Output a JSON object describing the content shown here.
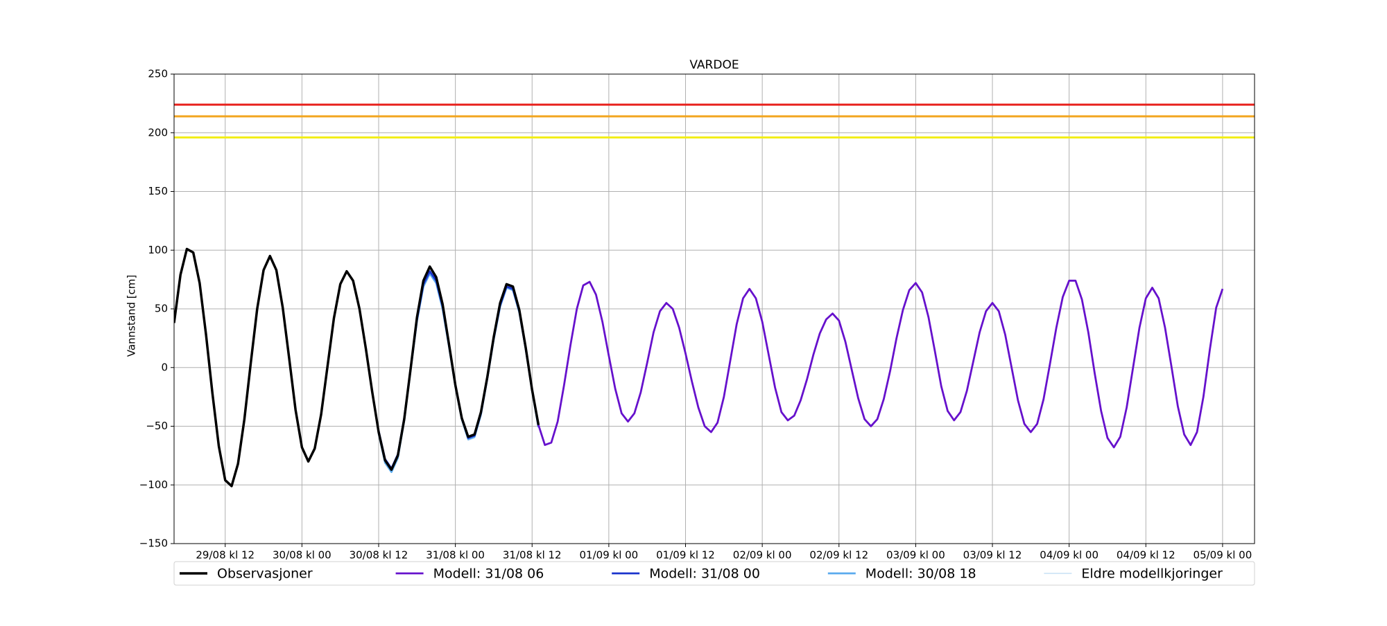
{
  "chart_data": {
    "type": "line",
    "title": "VARDOE",
    "y_label": "Vannstand [cm]",
    "xlim": [
      "29/08 kl 04",
      "05/09 kl 05"
    ],
    "xticks": [
      "29/08 kl 12",
      "30/08 kl 00",
      "30/08 kl 12",
      "31/08 kl 00",
      "31/08 kl 12",
      "01/09 kl 00",
      "01/09 kl 12",
      "02/09 kl 00",
      "02/09 kl 12",
      "03/09 kl 00",
      "03/09 kl 12",
      "04/09 kl 00",
      "04/09 kl 12",
      "05/09 kl 00"
    ],
    "ylim": [
      -150,
      250
    ],
    "yticks": [
      {
        "value": -150,
        "label": "−150"
      },
      {
        "value": -100,
        "label": "−100"
      },
      {
        "value": -50,
        "label": "−50"
      },
      0,
      50,
      100,
      150,
      200,
      250
    ],
    "grid": true,
    "legend": "below",
    "thresholds": [
      {
        "value": 224,
        "color": "#e8211d"
      },
      {
        "value": 214,
        "color": "#f2a51f"
      },
      {
        "value": 196,
        "color": "#f2ee1a"
      }
    ],
    "series": [
      {
        "name": "Observasjoner",
        "color": "#000000",
        "x": [
          "29/08 kl 04",
          "29/08 kl 05",
          "29/08 kl 06",
          "29/08 kl 07",
          "29/08 kl 08",
          "29/08 kl 09",
          "29/08 kl 10",
          "29/08 kl 11",
          "29/08 kl 12",
          "29/08 kl 13",
          "29/08 kl 14",
          "29/08 kl 15",
          "29/08 kl 16",
          "29/08 kl 17",
          "29/08 kl 18",
          "29/08 kl 19",
          "29/08 kl 20",
          "29/08 kl 21",
          "29/08 kl 22",
          "29/08 kl 23",
          "30/08 kl 00",
          "30/08 kl 01",
          "30/08 kl 02",
          "30/08 kl 03",
          "30/08 kl 04",
          "30/08 kl 05",
          "30/08 kl 06",
          "30/08 kl 07",
          "30/08 kl 08",
          "30/08 kl 09",
          "30/08 kl 10",
          "30/08 kl 11",
          "30/08 kl 12",
          "30/08 kl 13",
          "30/08 kl 14",
          "30/08 kl 15",
          "30/08 kl 16",
          "30/08 kl 17",
          "30/08 kl 18",
          "30/08 kl 19",
          "30/08 kl 20",
          "30/08 kl 21",
          "30/08 kl 22",
          "30/08 kl 23",
          "31/08 kl 00",
          "31/08 kl 01",
          "31/08 kl 02",
          "31/08 kl 03",
          "31/08 kl 04",
          "31/08 kl 05",
          "31/08 kl 06",
          "31/08 kl 07",
          "31/08 kl 08",
          "31/08 kl 09",
          "31/08 kl 10",
          "31/08 kl 11",
          "31/08 kl 12",
          "31/08 kl 13"
        ],
        "values": [
          38,
          79,
          101,
          98,
          72,
          28,
          -22,
          -67,
          -96,
          -101,
          -82,
          -44,
          4,
          50,
          83,
          95,
          83,
          51,
          8,
          -36,
          -68,
          -80,
          -69,
          -40,
          1,
          42,
          71,
          82,
          74,
          50,
          16,
          -21,
          -55,
          -79,
          -87,
          -75,
          -44,
          -1,
          43,
          74,
          86,
          77,
          54,
          20,
          -15,
          -43,
          -59,
          -57,
          -38,
          -8,
          26,
          55,
          71,
          69,
          49,
          17,
          -19,
          -49
        ]
      },
      {
        "name": "Modell: 31/08 06",
        "color": "#6611cc",
        "x": [
          "31/08 kl 13",
          "31/08 kl 14",
          "31/08 kl 15",
          "31/08 kl 16",
          "31/08 kl 17",
          "31/08 kl 18",
          "31/08 kl 19",
          "31/08 kl 20",
          "31/08 kl 21",
          "31/08 kl 22",
          "31/08 kl 23",
          "01/09 kl 00",
          "01/09 kl 01",
          "01/09 kl 02",
          "01/09 kl 03",
          "01/09 kl 04",
          "01/09 kl 05",
          "01/09 kl 06",
          "01/09 kl 07",
          "01/09 kl 08",
          "01/09 kl 09",
          "01/09 kl 10",
          "01/09 kl 11",
          "01/09 kl 12",
          "01/09 kl 13",
          "01/09 kl 14",
          "01/09 kl 15",
          "01/09 kl 16",
          "01/09 kl 17",
          "01/09 kl 18",
          "01/09 kl 19",
          "01/09 kl 20",
          "01/09 kl 21",
          "01/09 kl 22",
          "01/09 kl 23",
          "02/09 kl 00",
          "02/09 kl 01",
          "02/09 kl 02",
          "02/09 kl 03",
          "02/09 kl 04",
          "02/09 kl 05",
          "02/09 kl 06",
          "02/09 kl 07",
          "02/09 kl 08",
          "02/09 kl 09",
          "02/09 kl 10",
          "02/09 kl 11",
          "02/09 kl 12",
          "02/09 kl 13",
          "02/09 kl 14",
          "02/09 kl 15",
          "02/09 kl 16",
          "02/09 kl 17",
          "02/09 kl 18",
          "02/09 kl 19",
          "02/09 kl 20",
          "02/09 kl 21",
          "02/09 kl 22",
          "02/09 kl 23",
          "03/09 kl 00",
          "03/09 kl 01",
          "03/09 kl 02",
          "03/09 kl 03",
          "03/09 kl 04",
          "03/09 kl 05",
          "03/09 kl 06",
          "03/09 kl 07",
          "03/09 kl 08",
          "03/09 kl 09",
          "03/09 kl 10",
          "03/09 kl 11",
          "03/09 kl 12",
          "03/09 kl 13",
          "03/09 kl 14",
          "03/09 kl 15",
          "03/09 kl 16",
          "03/09 kl 17",
          "03/09 kl 18",
          "03/09 kl 19",
          "03/09 kl 20",
          "03/09 kl 21",
          "03/09 kl 22",
          "03/09 kl 23",
          "04/09 kl 00",
          "04/09 kl 01",
          "04/09 kl 02",
          "04/09 kl 03",
          "04/09 kl 04",
          "04/09 kl 05",
          "04/09 kl 06",
          "04/09 kl 07",
          "04/09 kl 08",
          "04/09 kl 09",
          "04/09 kl 10",
          "04/09 kl 11",
          "04/09 kl 12",
          "04/09 kl 13",
          "04/09 kl 14",
          "04/09 kl 15",
          "04/09 kl 16",
          "04/09 kl 17",
          "04/09 kl 18",
          "04/09 kl 19",
          "04/09 kl 20",
          "04/09 kl 21",
          "04/09 kl 22",
          "04/09 kl 23",
          "05/09 kl 00"
        ],
        "values": [
          -49,
          -66,
          -64,
          -46,
          -15,
          19,
          50,
          70,
          73,
          62,
          39,
          10,
          -18,
          -39,
          -46,
          -39,
          -21,
          4,
          30,
          48,
          55,
          50,
          34,
          12,
          -12,
          -34,
          -50,
          -55,
          -47,
          -25,
          6,
          37,
          59,
          67,
          59,
          39,
          11,
          -17,
          -38,
          -45,
          -41,
          -28,
          -10,
          11,
          29,
          41,
          46,
          40,
          22,
          -2,
          -26,
          -44,
          -50,
          -44,
          -27,
          -3,
          25,
          49,
          66,
          72,
          64,
          43,
          14,
          -16,
          -37,
          -45,
          -38,
          -20,
          5,
          30,
          48,
          55,
          48,
          28,
          0,
          -28,
          -48,
          -55,
          -48,
          -27,
          3,
          34,
          60,
          74,
          74,
          58,
          30,
          -5,
          -37,
          -60,
          -68,
          -59,
          -34,
          0,
          34,
          59,
          68,
          59,
          34,
          1,
          -33,
          -57,
          -66,
          -55,
          -25,
          15,
          51,
          67
        ]
      },
      {
        "name": "Modell: 31/08 00",
        "color": "#1a33cc",
        "x": [
          "30/08 kl 12",
          "30/08 kl 13",
          "30/08 kl 14",
          "30/08 kl 15",
          "30/08 kl 16",
          "30/08 kl 17",
          "30/08 kl 18",
          "30/08 kl 19",
          "30/08 kl 20",
          "30/08 kl 21",
          "30/08 kl 22",
          "30/08 kl 23",
          "31/08 kl 00",
          "31/08 kl 01",
          "31/08 kl 02",
          "31/08 kl 03",
          "31/08 kl 04",
          "31/08 kl 05",
          "31/08 kl 06",
          "31/08 kl 07",
          "31/08 kl 08",
          "31/08 kl 09",
          "31/08 kl 10",
          "31/08 kl 11",
          "31/08 kl 12",
          "31/08 kl 13"
        ],
        "values": [
          -54,
          -78,
          -86,
          -74,
          -43,
          -1,
          41,
          71,
          82,
          74,
          52,
          19,
          -15,
          -43,
          -60,
          -58,
          -39,
          -9,
          25,
          53,
          69,
          67,
          48,
          16,
          -19,
          -50
        ]
      },
      {
        "name": "Modell: 30/08 18",
        "color": "#5aaaee",
        "x": [
          "30/08 kl 12",
          "30/08 kl 13",
          "30/08 kl 14",
          "30/08 kl 15",
          "30/08 kl 16",
          "30/08 kl 17",
          "30/08 kl 18",
          "30/08 kl 19",
          "30/08 kl 20",
          "30/08 kl 21",
          "30/08 kl 22",
          "30/08 kl 23",
          "31/08 kl 00",
          "31/08 kl 01",
          "31/08 kl 02",
          "31/08 kl 03",
          "31/08 kl 04",
          "31/08 kl 05",
          "31/08 kl 06",
          "31/08 kl 07",
          "31/08 kl 08",
          "31/08 kl 09",
          "31/08 kl 10",
          "31/08 kl 11",
          "31/08 kl 12",
          "31/08 kl 13"
        ],
        "values": [
          -56,
          -81,
          -89,
          -77,
          -45,
          -2,
          40,
          69,
          80,
          72,
          50,
          18,
          -16,
          -44,
          -61,
          -59,
          -40,
          -9,
          24,
          52,
          68,
          66,
          47,
          16,
          -20,
          -51
        ]
      },
      {
        "name": "Eldre modellkjoringer",
        "color": "#bcd9f2",
        "x": [
          "30/08 kl 22",
          "30/08 kl 23",
          "31/08 kl 00",
          "31/08 kl 01",
          "31/08 kl 02",
          "31/08 kl 03",
          "31/08 kl 04",
          "31/08 kl 05",
          "31/08 kl 06"
        ],
        "values": [
          52,
          18,
          -17,
          -45,
          -62,
          -60,
          -41,
          -10,
          23
        ]
      }
    ]
  }
}
